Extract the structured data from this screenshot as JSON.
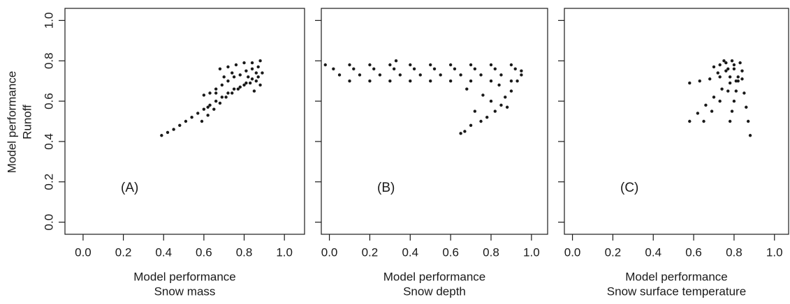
{
  "chart_data": [
    {
      "type": "scatter",
      "annotation": "(A)",
      "xlabel": [
        "Model performance",
        "Snow mass"
      ],
      "ylabel": [
        "Model performance",
        "Runoff"
      ],
      "color": "#1a1a1a",
      "xlim": [
        -0.09,
        1.1
      ],
      "ylim": [
        -0.06,
        1.06
      ],
      "xticks": [
        {
          "value": 0,
          "label": "0.0"
        },
        0.2,
        0.4,
        0.6,
        0.8,
        {
          "value": 1,
          "label": "1.0"
        }
      ],
      "yticks": [
        {
          "value": 0,
          "label": "0.0"
        },
        0.2,
        0.4,
        0.6,
        0.8,
        {
          "value": 1,
          "label": "1.0"
        }
      ],
      "x": [
        0.39,
        0.42,
        0.45,
        0.48,
        0.51,
        0.54,
        0.57,
        0.6,
        0.63,
        0.66,
        0.69,
        0.72,
        0.75,
        0.78,
        0.81,
        0.84,
        0.87,
        0.59,
        0.62,
        0.65,
        0.68,
        0.71,
        0.74,
        0.77,
        0.8,
        0.83,
        0.86,
        0.6,
        0.63,
        0.66,
        0.69,
        0.72,
        0.75,
        0.78,
        0.81,
        0.84,
        0.87,
        0.68,
        0.72,
        0.76,
        0.8,
        0.84,
        0.88,
        0.7,
        0.74,
        0.82,
        0.86,
        0.89,
        0.88,
        0.85,
        0.62,
        0.66
      ],
      "y": [
        0.43,
        0.445,
        0.46,
        0.48,
        0.5,
        0.52,
        0.54,
        0.56,
        0.58,
        0.6,
        0.62,
        0.64,
        0.66,
        0.67,
        0.69,
        0.71,
        0.72,
        0.5,
        0.53,
        0.56,
        0.59,
        0.62,
        0.64,
        0.66,
        0.68,
        0.69,
        0.7,
        0.63,
        0.64,
        0.66,
        0.68,
        0.7,
        0.72,
        0.73,
        0.75,
        0.76,
        0.77,
        0.76,
        0.77,
        0.78,
        0.79,
        0.79,
        0.8,
        0.72,
        0.74,
        0.72,
        0.74,
        0.74,
        0.68,
        0.65,
        0.57,
        0.64
      ]
    },
    {
      "type": "scatter",
      "annotation": "(B)",
      "xlabel": [
        "Model performance",
        "Snow depth"
      ],
      "color": "#1a1a1a",
      "xlim": [
        -0.04,
        1.08
      ],
      "ylim": [
        -0.06,
        1.06
      ],
      "xticks": [
        {
          "value": 0,
          "label": "0.0"
        },
        0.2,
        0.4,
        0.6,
        0.8,
        {
          "value": 1,
          "label": "1.0"
        }
      ],
      "yticks": [
        0,
        0.2,
        0.4,
        0.6,
        0.8,
        1
      ],
      "x": [
        -0.02,
        0.1,
        0.2,
        0.3,
        0.4,
        0.5,
        0.6,
        0.7,
        0.8,
        0.9,
        0.02,
        0.12,
        0.22,
        0.32,
        0.42,
        0.52,
        0.62,
        0.72,
        0.82,
        0.92,
        0.05,
        0.15,
        0.25,
        0.35,
        0.45,
        0.55,
        0.65,
        0.75,
        0.85,
        0.95,
        0.1,
        0.2,
        0.3,
        0.4,
        0.5,
        0.6,
        0.7,
        0.8,
        0.9,
        0.33,
        0.65,
        0.67,
        0.7,
        0.75,
        0.78,
        0.82,
        0.85,
        0.72,
        0.8,
        0.87,
        0.9,
        0.95,
        0.93,
        0.76,
        0.68,
        0.84,
        0.88
      ],
      "y": [
        0.78,
        0.78,
        0.78,
        0.78,
        0.78,
        0.78,
        0.78,
        0.78,
        0.78,
        0.78,
        0.76,
        0.76,
        0.76,
        0.76,
        0.76,
        0.76,
        0.76,
        0.76,
        0.76,
        0.76,
        0.73,
        0.73,
        0.73,
        0.73,
        0.73,
        0.73,
        0.73,
        0.73,
        0.73,
        0.73,
        0.7,
        0.7,
        0.7,
        0.7,
        0.7,
        0.7,
        0.7,
        0.7,
        0.7,
        0.8,
        0.44,
        0.45,
        0.48,
        0.5,
        0.52,
        0.55,
        0.58,
        0.55,
        0.6,
        0.62,
        0.65,
        0.75,
        0.7,
        0.63,
        0.66,
        0.68,
        0.57
      ]
    },
    {
      "type": "scatter",
      "annotation": "(C)",
      "xlabel": [
        "Model performance",
        "Snow surface temperature"
      ],
      "color": "#1a1a1a",
      "xlim": [
        -0.04,
        1.07
      ],
      "ylim": [
        -0.06,
        1.06
      ],
      "xticks": [
        {
          "value": 0,
          "label": "0.0"
        },
        0.2,
        0.4,
        0.6,
        0.8,
        {
          "value": 1,
          "label": "1.0"
        }
      ],
      "yticks": [
        0,
        0.2,
        0.4,
        0.6,
        0.8,
        1
      ],
      "x": [
        0.58,
        0.62,
        0.66,
        0.7,
        0.74,
        0.78,
        0.82,
        0.58,
        0.63,
        0.68,
        0.73,
        0.78,
        0.65,
        0.69,
        0.73,
        0.77,
        0.81,
        0.78,
        0.79,
        0.8,
        0.81,
        0.82,
        0.88,
        0.87,
        0.86,
        0.85,
        0.84,
        0.7,
        0.73,
        0.76,
        0.79,
        0.75,
        0.77,
        0.8,
        0.83,
        0.84,
        0.72,
        0.76,
        0.8
      ],
      "y": [
        0.5,
        0.54,
        0.58,
        0.62,
        0.66,
        0.69,
        0.72,
        0.69,
        0.7,
        0.71,
        0.72,
        0.72,
        0.5,
        0.55,
        0.6,
        0.65,
        0.7,
        0.5,
        0.55,
        0.6,
        0.65,
        0.7,
        0.43,
        0.5,
        0.57,
        0.64,
        0.71,
        0.77,
        0.78,
        0.79,
        0.8,
        0.8,
        0.76,
        0.78,
        0.79,
        0.75,
        0.74,
        0.75,
        0.76
      ]
    }
  ]
}
